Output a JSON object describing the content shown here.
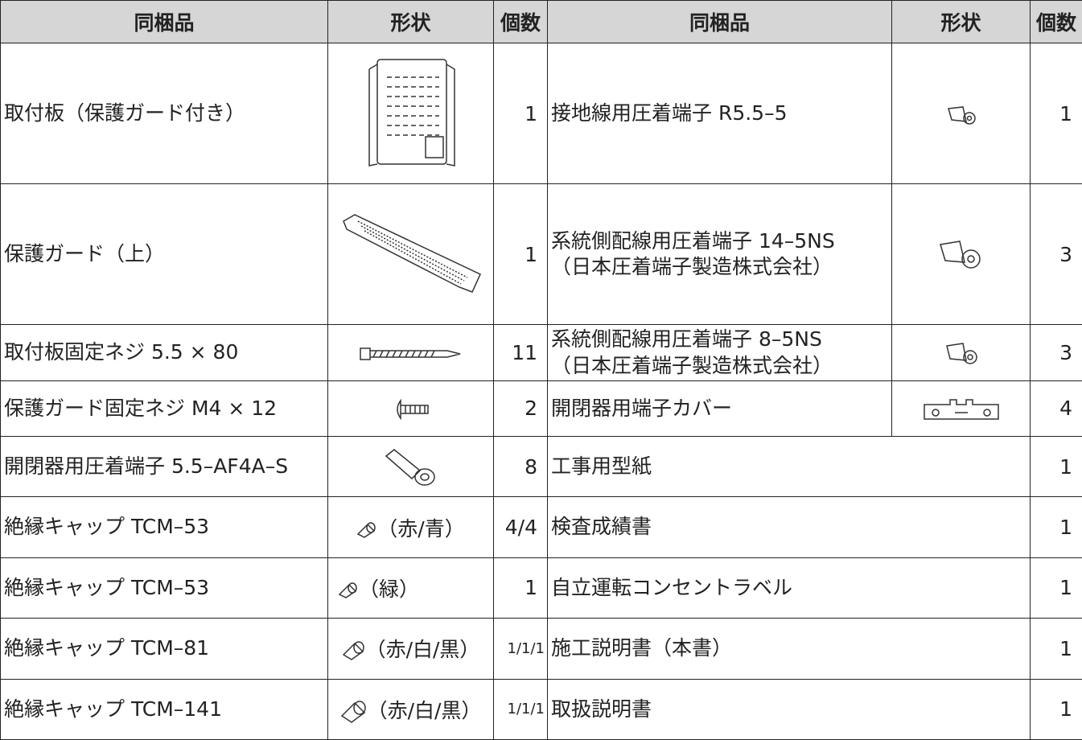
{
  "header": {
    "columns": [
      "同梱品",
      "形状",
      "個数",
      "同梱品",
      "形状",
      "個数"
    ]
  },
  "table": {
    "rows": [
      {
        "left": {
          "item": "取付板（保護ガード付き）",
          "count": "1"
        },
        "right": {
          "item": "接地線用圧着端子 R5.5–5",
          "count": "1"
        }
      },
      {
        "left": {
          "item": "保護ガード（上）",
          "count": "1"
        },
        "right": {
          "item": "系統側配線用圧着端子 14–5NS\n（日本圧着端子製造株式会社）",
          "count": "3"
        }
      },
      {
        "left": {
          "item": "取付板固定ネジ 5.5 × 80",
          "count": "11"
        },
        "right": {
          "item": "系統側配線用圧着端子 8–5NS\n（日本圧着端子製造株式会社）",
          "count": "3"
        }
      },
      {
        "left": {
          "item": "保護ガード固定ネジ M4 × 12",
          "count": "2"
        },
        "right": {
          "item": "開閉器用端子カバー",
          "count": "4"
        }
      },
      {
        "left": {
          "item": "開閉器用圧着端子 5.5–AF4A–S",
          "count": "8"
        },
        "right": {
          "item": "工事用型紙",
          "count": "1"
        }
      },
      {
        "left": {
          "item": "絶縁キャップ TCM–53",
          "shape": "（赤/青）",
          "count": "4/4"
        },
        "right": {
          "item": "検査成績書",
          "count": "1"
        }
      },
      {
        "left": {
          "item": "絶縁キャップ TCM–53",
          "shape": "（緑）",
          "count": "1"
        },
        "right": {
          "item": "自立運転コンセントラベル",
          "count": "1"
        }
      },
      {
        "left": {
          "item": "絶縁キャップ TCM–81",
          "shape": "（赤/白/黒）",
          "count": "1/1/1"
        },
        "right": {
          "item": "施工説明書（本書）",
          "count": "1"
        }
      },
      {
        "left": {
          "item": "絶縁キャップ TCM–141",
          "shape": "（赤/白/黒）",
          "count": "1/1/1"
        },
        "right": {
          "item": "取扱説明書",
          "count": "1"
        }
      }
    ]
  }
}
